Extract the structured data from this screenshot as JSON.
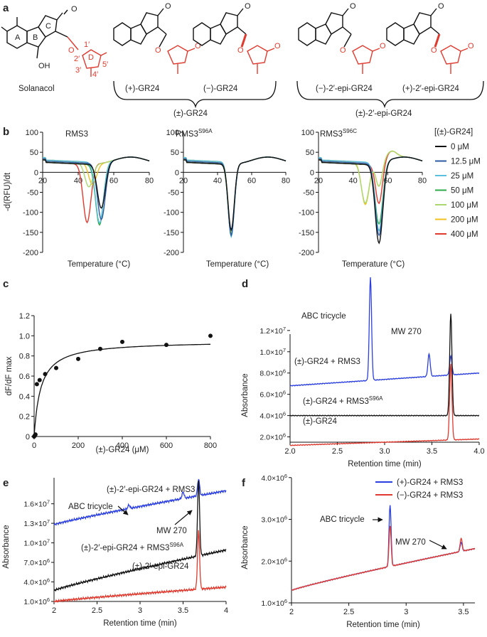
{
  "panel_labels": {
    "a": "a",
    "b": "b",
    "c": "c",
    "d": "d",
    "e": "e",
    "f": "f"
  },
  "panel_a": {
    "solanacol_label": "Solanacol",
    "ring_labels": {
      "A": "A",
      "B": "B",
      "C": "C",
      "D": "D"
    },
    "atom_labels": {
      "oh": "OH",
      "o": "O",
      "p1": "1′",
      "p2": "2′",
      "p3": "3′",
      "p4": "4′",
      "p5": "5′"
    },
    "isomers": [
      "(+)-GR24",
      "(−)-GR24",
      "(−)-2′-epi-GR24",
      "(+)-2′-epi-GR24"
    ],
    "groups": [
      "(±)-GR24",
      "(±)-2′-epi-GR24"
    ],
    "colors": {
      "d_ring": "#e03a2f",
      "core": "#111111"
    }
  },
  "chart_data": [
    {
      "panel": "b",
      "type": "line",
      "title": "RMS3",
      "xlabel": "Temperature (°C)",
      "ylabel": "-d(RFU)/dt",
      "xlim": [
        20,
        80
      ],
      "ylim": [
        -200,
        100
      ],
      "xticks": [
        20,
        40,
        60,
        80
      ],
      "yticks": [
        100,
        50,
        0,
        -50,
        -100,
        -150,
        -200
      ],
      "legend_title": "[(±)-GR24]",
      "series": [
        {
          "name": "0 μM",
          "color": "#111111",
          "minimum": {
            "x": 53,
            "y": -110
          }
        },
        {
          "name": "12.5 μM",
          "color": "#2c5aa0",
          "minimum": {
            "x": 53,
            "y": -140
          }
        },
        {
          "name": "25 μM",
          "color": "#5bc0de",
          "minimum": {
            "x": 52,
            "y": -150
          }
        },
        {
          "name": "50 μM",
          "color": "#2eaa4a",
          "minimum": {
            "x": 52,
            "y": -152
          }
        },
        {
          "name": "100 μM",
          "color": "#a8d86e",
          "minimum": {
            "x": 46,
            "y": -60
          }
        },
        {
          "name": "200 μM",
          "color": "#f0c020",
          "minimum": {
            "x": 48,
            "y": -55
          }
        },
        {
          "name": "400 μM",
          "color": "#e03a2f",
          "minimum": {
            "x": 45,
            "y": -148
          }
        }
      ]
    },
    {
      "panel": "b",
      "type": "line",
      "title": "RMS3",
      "title_superscript": "S96A",
      "xlabel": "Temperature (°C)",
      "xlim": [
        20,
        80
      ],
      "ylim": [
        -200,
        100
      ],
      "xticks": [
        20,
        40,
        60,
        80
      ],
      "yticks": [
        100,
        50,
        0,
        -50,
        -100,
        -150,
        -200
      ],
      "series": [
        {
          "name": "0 μM",
          "color": "#111111",
          "minimum": {
            "x": 48,
            "y": -165
          }
        },
        {
          "name": "12.5 μM",
          "color": "#2c5aa0",
          "minimum": {
            "x": 48,
            "y": -180
          }
        },
        {
          "name": "25 μM",
          "color": "#5bc0de",
          "minimum": {
            "x": 48,
            "y": -185
          }
        },
        {
          "name": "50 μM",
          "color": "#2eaa4a",
          "minimum": {
            "x": 48,
            "y": -178
          }
        },
        {
          "name": "100 μM",
          "color": "#a8d86e",
          "minimum": {
            "x": 48,
            "y": -175
          }
        },
        {
          "name": "200 μM",
          "color": "#f0c020",
          "minimum": {
            "x": 48,
            "y": -172
          }
        },
        {
          "name": "400 μM",
          "color": "#e03a2f",
          "minimum": {
            "x": 48,
            "y": -175
          }
        }
      ]
    },
    {
      "panel": "b",
      "type": "line",
      "title": "RMS3",
      "title_superscript": "S96C",
      "xlabel": "Temperature (°C)",
      "xlim": [
        20,
        80
      ],
      "ylim": [
        -200,
        100
      ],
      "xticks": [
        20,
        40,
        60,
        80
      ],
      "yticks": [
        100,
        50,
        0,
        -50,
        -100,
        -150,
        -200
      ],
      "series": [
        {
          "name": "0 μM",
          "color": "#111111",
          "minimum": {
            "x": 55,
            "y": -198
          }
        },
        {
          "name": "12.5 μM",
          "color": "#2c5aa0",
          "minimum": {
            "x": 55,
            "y": -180
          }
        },
        {
          "name": "25 μM",
          "color": "#5bc0de",
          "minimum": {
            "x": 55,
            "y": -170
          }
        },
        {
          "name": "50 μM",
          "color": "#2eaa4a",
          "minimum": {
            "x": 55,
            "y": -150
          }
        },
        {
          "name": "100 μM",
          "color": "#a8d86e",
          "minimum": {
            "x": 47,
            "y": -100
          }
        },
        {
          "name": "200 μM",
          "color": "#f0c020",
          "minimum": {
            "x": 47,
            "y": -105
          }
        },
        {
          "name": "400 μM",
          "color": "#e03a2f",
          "minimum": {
            "x": 55,
            "y": -40
          }
        }
      ]
    },
    {
      "panel": "c",
      "type": "scatter",
      "xlabel": "(±)-GR24 (μM)",
      "ylabel": "dF/dF max",
      "xlim": [
        0,
        800
      ],
      "ylim": [
        0,
        1.2
      ],
      "xticks": [
        0,
        200,
        400,
        600,
        800
      ],
      "yticks": [
        0,
        0.2,
        0.4,
        0.6,
        0.8,
        1.0,
        1.2
      ],
      "ytick_labels": [
        "0",
        "0.2",
        "0.4",
        "0.6",
        "0.8",
        "1.0",
        "1.2"
      ],
      "x": [
        0,
        3,
        6,
        12.5,
        25,
        50,
        100,
        200,
        300,
        400,
        600,
        800
      ],
      "y": [
        0.0,
        0.01,
        0.02,
        0.52,
        0.56,
        0.62,
        0.68,
        0.77,
        0.87,
        0.94,
        0.91,
        1.0
      ],
      "fit": {
        "bmax": 0.95,
        "kd": 30
      }
    },
    {
      "panel": "d",
      "type": "line",
      "xlabel": "Retention time (min)",
      "ylabel": "Absorbance",
      "xlim": [
        2.0,
        4.0
      ],
      "ylim": [
        1500000,
        17000000
      ],
      "xticks": [
        2.0,
        2.5,
        3.0,
        3.5,
        4.0
      ],
      "xtick_labels": [
        "2.0",
        "2.5",
        "3.0",
        "3.5",
        "4.0"
      ],
      "yticks": [
        2000000,
        4000000,
        6000000,
        8000000,
        10000000,
        12000000
      ],
      "ytick_labels": [
        {
          "m": "2.0",
          "e": "6"
        },
        {
          "m": "4.0",
          "e": "6"
        },
        {
          "m": "6.0",
          "e": "6"
        },
        {
          "m": "8.0",
          "e": "6"
        },
        {
          "m": "1.0",
          "e": "7"
        },
        {
          "m": "1.2",
          "e": "7"
        }
      ],
      "series": [
        {
          "name": "(±)-GR24 + RMS3",
          "color": "#2b3fe0",
          "baseline": [
            6800000,
            8000000
          ],
          "peaks": [
            {
              "x": 2.85,
              "y": 17000000
            },
            {
              "x": 3.47,
              "y": 9800000
            },
            {
              "x": 3.7,
              "y": 9600000
            }
          ]
        },
        {
          "name": "(±)-GR24 + RMS3",
          "name_superscript": "S96A",
          "color": "#111111",
          "baseline": [
            4000000,
            4000000
          ],
          "peaks": [
            {
              "x": 3.7,
              "y": 13600000
            }
          ]
        },
        {
          "name": "(±)-GR24",
          "color": "#e03a2f",
          "baseline": [
            1200000,
            1800000
          ],
          "peaks": [
            {
              "x": 3.7,
              "y": 8900000
            }
          ]
        }
      ],
      "annotations": [
        "ABC tricycle",
        "MW 270"
      ]
    },
    {
      "panel": "e",
      "type": "line",
      "xlabel": "Retention time (min)",
      "ylabel": "Absorbance",
      "xlim": [
        2,
        4
      ],
      "ylim": [
        1000000,
        20000000
      ],
      "xticks": [
        2,
        2.5,
        3,
        3.5,
        4
      ],
      "xtick_labels": [
        "2",
        "2.5",
        "3",
        "3.5",
        "4"
      ],
      "yticks": [
        1000000,
        4000000,
        7000000,
        10000000,
        13000000,
        16000000
      ],
      "ytick_labels": [
        {
          "m": "1.0",
          "e": "6"
        },
        {
          "m": "4.0",
          "e": "6"
        },
        {
          "m": "7.0",
          "e": "6"
        },
        {
          "m": "1.0",
          "e": "7"
        },
        {
          "m": "1.3",
          "e": "7"
        },
        {
          "m": "1.6",
          "e": "7"
        }
      ],
      "series": [
        {
          "name": "(±)-2′-epi-GR24 + RMS3",
          "color": "#2b3fe0",
          "baseline": [
            12800000,
            18000000
          ],
          "peaks": [
            {
              "x": 2.87,
              "y": 15800000
            },
            {
              "x": 3.5,
              "y": 17800000
            },
            {
              "x": 3.68,
              "y": 19800000
            }
          ]
        },
        {
          "name": "(±)-2′-epi-GR24 + RMS3",
          "name_superscript": "S96A",
          "color": "#111111",
          "baseline": [
            2700000,
            8900000
          ],
          "peaks": [
            {
              "x": 3.68,
              "y": 19500000
            }
          ]
        },
        {
          "name": "(±)-2′-epi-GR24",
          "color": "#e03a2f",
          "baseline": [
            1000000,
            3200000
          ],
          "peaks": [
            {
              "x": 3.68,
              "y": 11800000
            }
          ]
        }
      ],
      "annotations": [
        "ABC tricycle",
        "MW 270"
      ]
    },
    {
      "panel": "f",
      "type": "line",
      "xlabel": "Retention time (min)",
      "ylabel": "Absorbance",
      "xlim": [
        2,
        3.6
      ],
      "ylim": [
        1000000,
        4200000
      ],
      "xticks": [
        2,
        2.5,
        3,
        3.5
      ],
      "xtick_labels": [
        "2",
        "2.5",
        "3",
        "3.5"
      ],
      "yticks": [
        1000000,
        2000000,
        3000000,
        4000000
      ],
      "ytick_labels": [
        {
          "m": "1.0",
          "e": "6"
        },
        {
          "m": "2.0",
          "e": "6"
        },
        {
          "m": "3.0",
          "e": "6"
        },
        {
          "m": "4.0",
          "e": "6"
        }
      ],
      "legend_position": "top-right",
      "series": [
        {
          "name": "(+)-GR24 + RMS3",
          "color": "#2b3fe0",
          "baseline": [
            1300000,
            2300000
          ],
          "peaks": [
            {
              "x": 2.86,
              "y": 3350000
            },
            {
              "x": 3.48,
              "y": 2450000
            }
          ]
        },
        {
          "name": "(−)-GR24 + RMS3",
          "color": "#e03a2f",
          "baseline": [
            1300000,
            2300000
          ],
          "peaks": [
            {
              "x": 2.86,
              "y": 2850000
            },
            {
              "x": 3.48,
              "y": 2550000
            }
          ]
        }
      ],
      "annotations": [
        "ABC tricycle",
        "MW 270"
      ]
    }
  ]
}
